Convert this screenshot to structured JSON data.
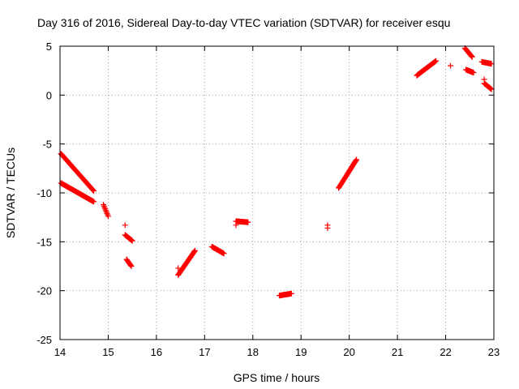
{
  "chart_data": {
    "type": "scatter",
    "title": "Day 316 of 2016, Sidereal Day-to-day VTEC variation (SDTVAR) for receiver esqu",
    "xlabel": "GPS time / hours",
    "ylabel": "SDTVAR / TECUs",
    "xlim": [
      14,
      23
    ],
    "ylim": [
      -25,
      5
    ],
    "xticks": [
      14,
      15,
      16,
      17,
      18,
      19,
      20,
      21,
      22,
      23
    ],
    "yticks": [
      5,
      0,
      -5,
      -10,
      -15,
      -20,
      -25
    ],
    "xtick_labels": [
      "14",
      "15",
      "16",
      "17",
      "18",
      "19",
      "20",
      "21",
      "22",
      "23"
    ],
    "ytick_labels": [
      "5",
      "0",
      "-5",
      "-10",
      "-15",
      "-20",
      "-25"
    ],
    "grid": true,
    "marker": "+",
    "color": "#ff0000",
    "segments": [
      {
        "x0": 14.02,
        "x1": 14.7,
        "y0": -6.0,
        "y1": -9.8
      },
      {
        "x0": 14.02,
        "x1": 14.7,
        "y0": -9.0,
        "y1": -10.9
      },
      {
        "x0": 14.9,
        "x1": 15.0,
        "y0": -11.2,
        "y1": -12.4
      },
      {
        "x0": 15.35,
        "x1": 15.5,
        "y0": -14.3,
        "y1": -14.9
      },
      {
        "x0": 15.38,
        "x1": 15.48,
        "y0": -16.8,
        "y1": -17.5
      },
      {
        "x0": 16.45,
        "x1": 16.8,
        "y0": -18.4,
        "y1": -15.9
      },
      {
        "x0": 17.15,
        "x1": 17.4,
        "y0": -15.5,
        "y1": -16.2
      },
      {
        "x0": 17.65,
        "x1": 17.9,
        "y0": -12.9,
        "y1": -13.0
      },
      {
        "x0": 18.55,
        "x1": 18.8,
        "y0": -20.5,
        "y1": -20.3
      },
      {
        "x0": 19.78,
        "x1": 20.15,
        "y0": -9.5,
        "y1": -6.6
      },
      {
        "x0": 21.4,
        "x1": 21.8,
        "y0": 2.0,
        "y1": 3.5
      },
      {
        "x0": 22.4,
        "x1": 22.55,
        "y0": 4.8,
        "y1": 3.9
      },
      {
        "x0": 22.42,
        "x1": 22.58,
        "y0": 2.6,
        "y1": 2.3
      },
      {
        "x0": 22.75,
        "x1": 22.95,
        "y0": 3.4,
        "y1": 3.2
      },
      {
        "x0": 22.8,
        "x1": 22.95,
        "y0": 1.2,
        "y1": 0.6
      }
    ],
    "isolated_points": [
      {
        "x": 15.35,
        "y": -13.3
      },
      {
        "x": 16.45,
        "y": -17.7
      },
      {
        "x": 17.65,
        "y": -13.3
      },
      {
        "x": 19.55,
        "y": -13.3
      },
      {
        "x": 19.55,
        "y": -13.6
      },
      {
        "x": 22.1,
        "y": 3.0
      },
      {
        "x": 22.8,
        "y": 1.6
      }
    ]
  }
}
